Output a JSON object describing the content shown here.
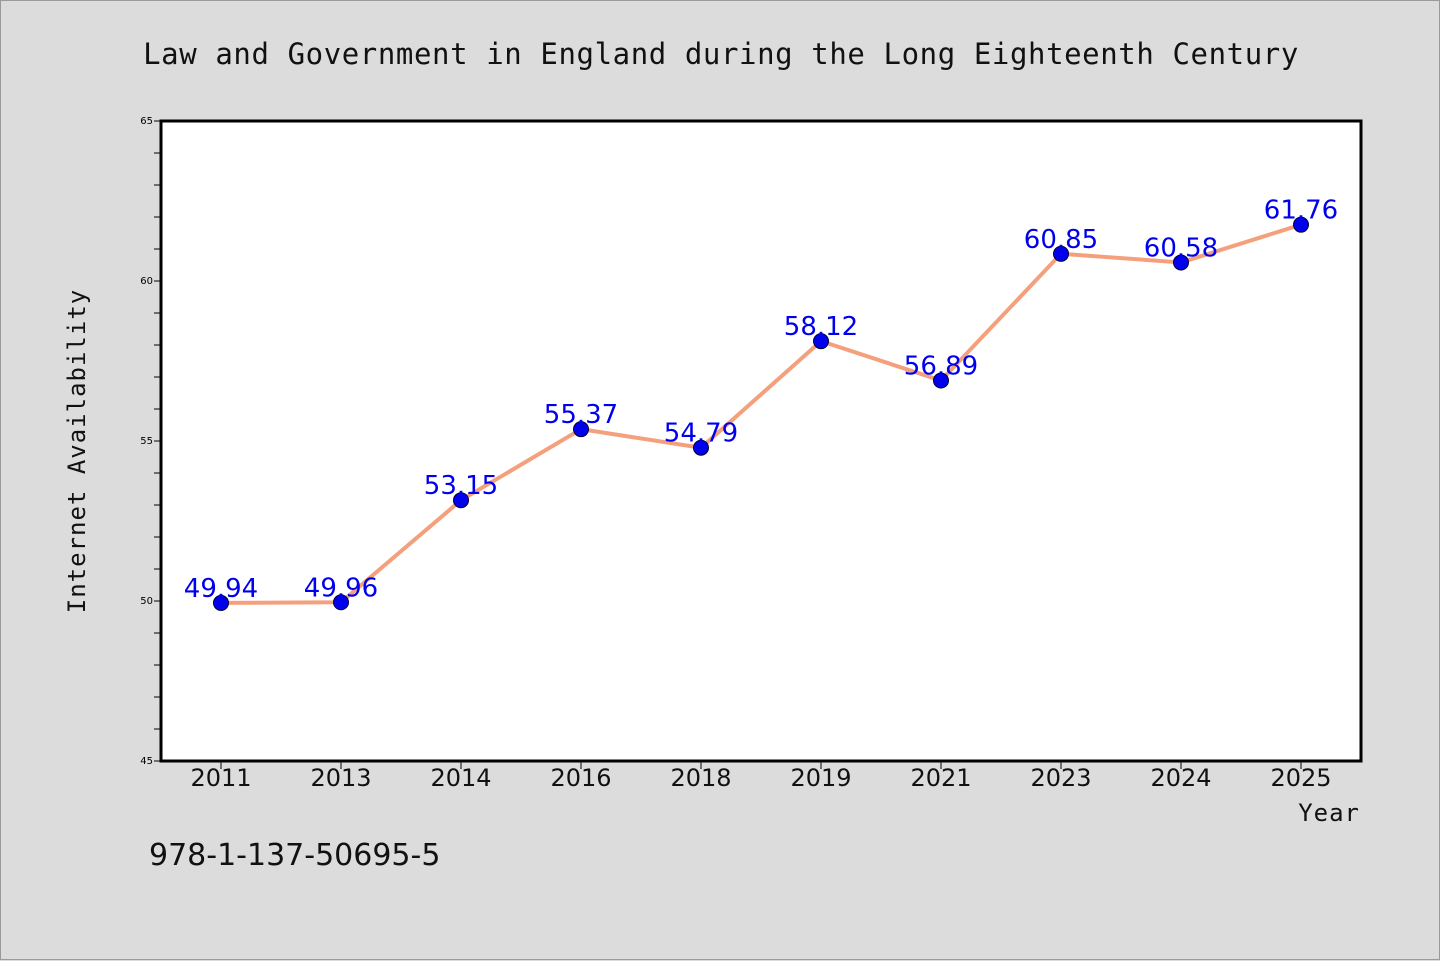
{
  "chart_data": {
    "type": "line",
    "title": "Law and Government in England during the Long Eighteenth Century",
    "xlabel": "Year",
    "ylabel": "Internet Availability",
    "categories": [
      "2011",
      "2013",
      "2014",
      "2016",
      "2018",
      "2019",
      "2021",
      "2023",
      "2024",
      "2025"
    ],
    "series": [
      {
        "values": [
          49.94,
          49.96,
          53.15,
          55.37,
          54.79,
          58.12,
          56.89,
          60.85,
          60.58,
          61.76
        ],
        "labels": [
          "49.94",
          "49.96",
          "53.15",
          "55.37",
          "54.79",
          "58.12",
          "56.89",
          "60.85",
          "60.58",
          "61.76"
        ],
        "line_color": "#f4a07c",
        "marker_color": "#0000ee"
      }
    ],
    "ylim": [
      45,
      65
    ],
    "yticks": [
      45,
      50,
      55,
      60,
      65
    ],
    "ytick_labels": [
      "45",
      "50",
      "55",
      "60",
      "65"
    ],
    "grid": false,
    "legend": "none"
  },
  "footer": {
    "isbn": "978-1-137-50695-5"
  },
  "colors": {
    "background": "#dcdcdc",
    "plot_area": "#ffffff",
    "label_color": "#0000ee"
  }
}
